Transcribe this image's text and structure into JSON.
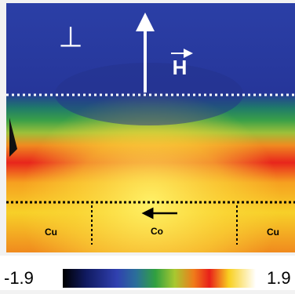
{
  "image": {
    "labels": {
      "perp": "⊥",
      "field": "H",
      "left_region": "Cu",
      "center_region": "Co",
      "right_region": "Cu"
    }
  },
  "colorbar": {
    "min": -1.9,
    "max": 1.9
  }
}
